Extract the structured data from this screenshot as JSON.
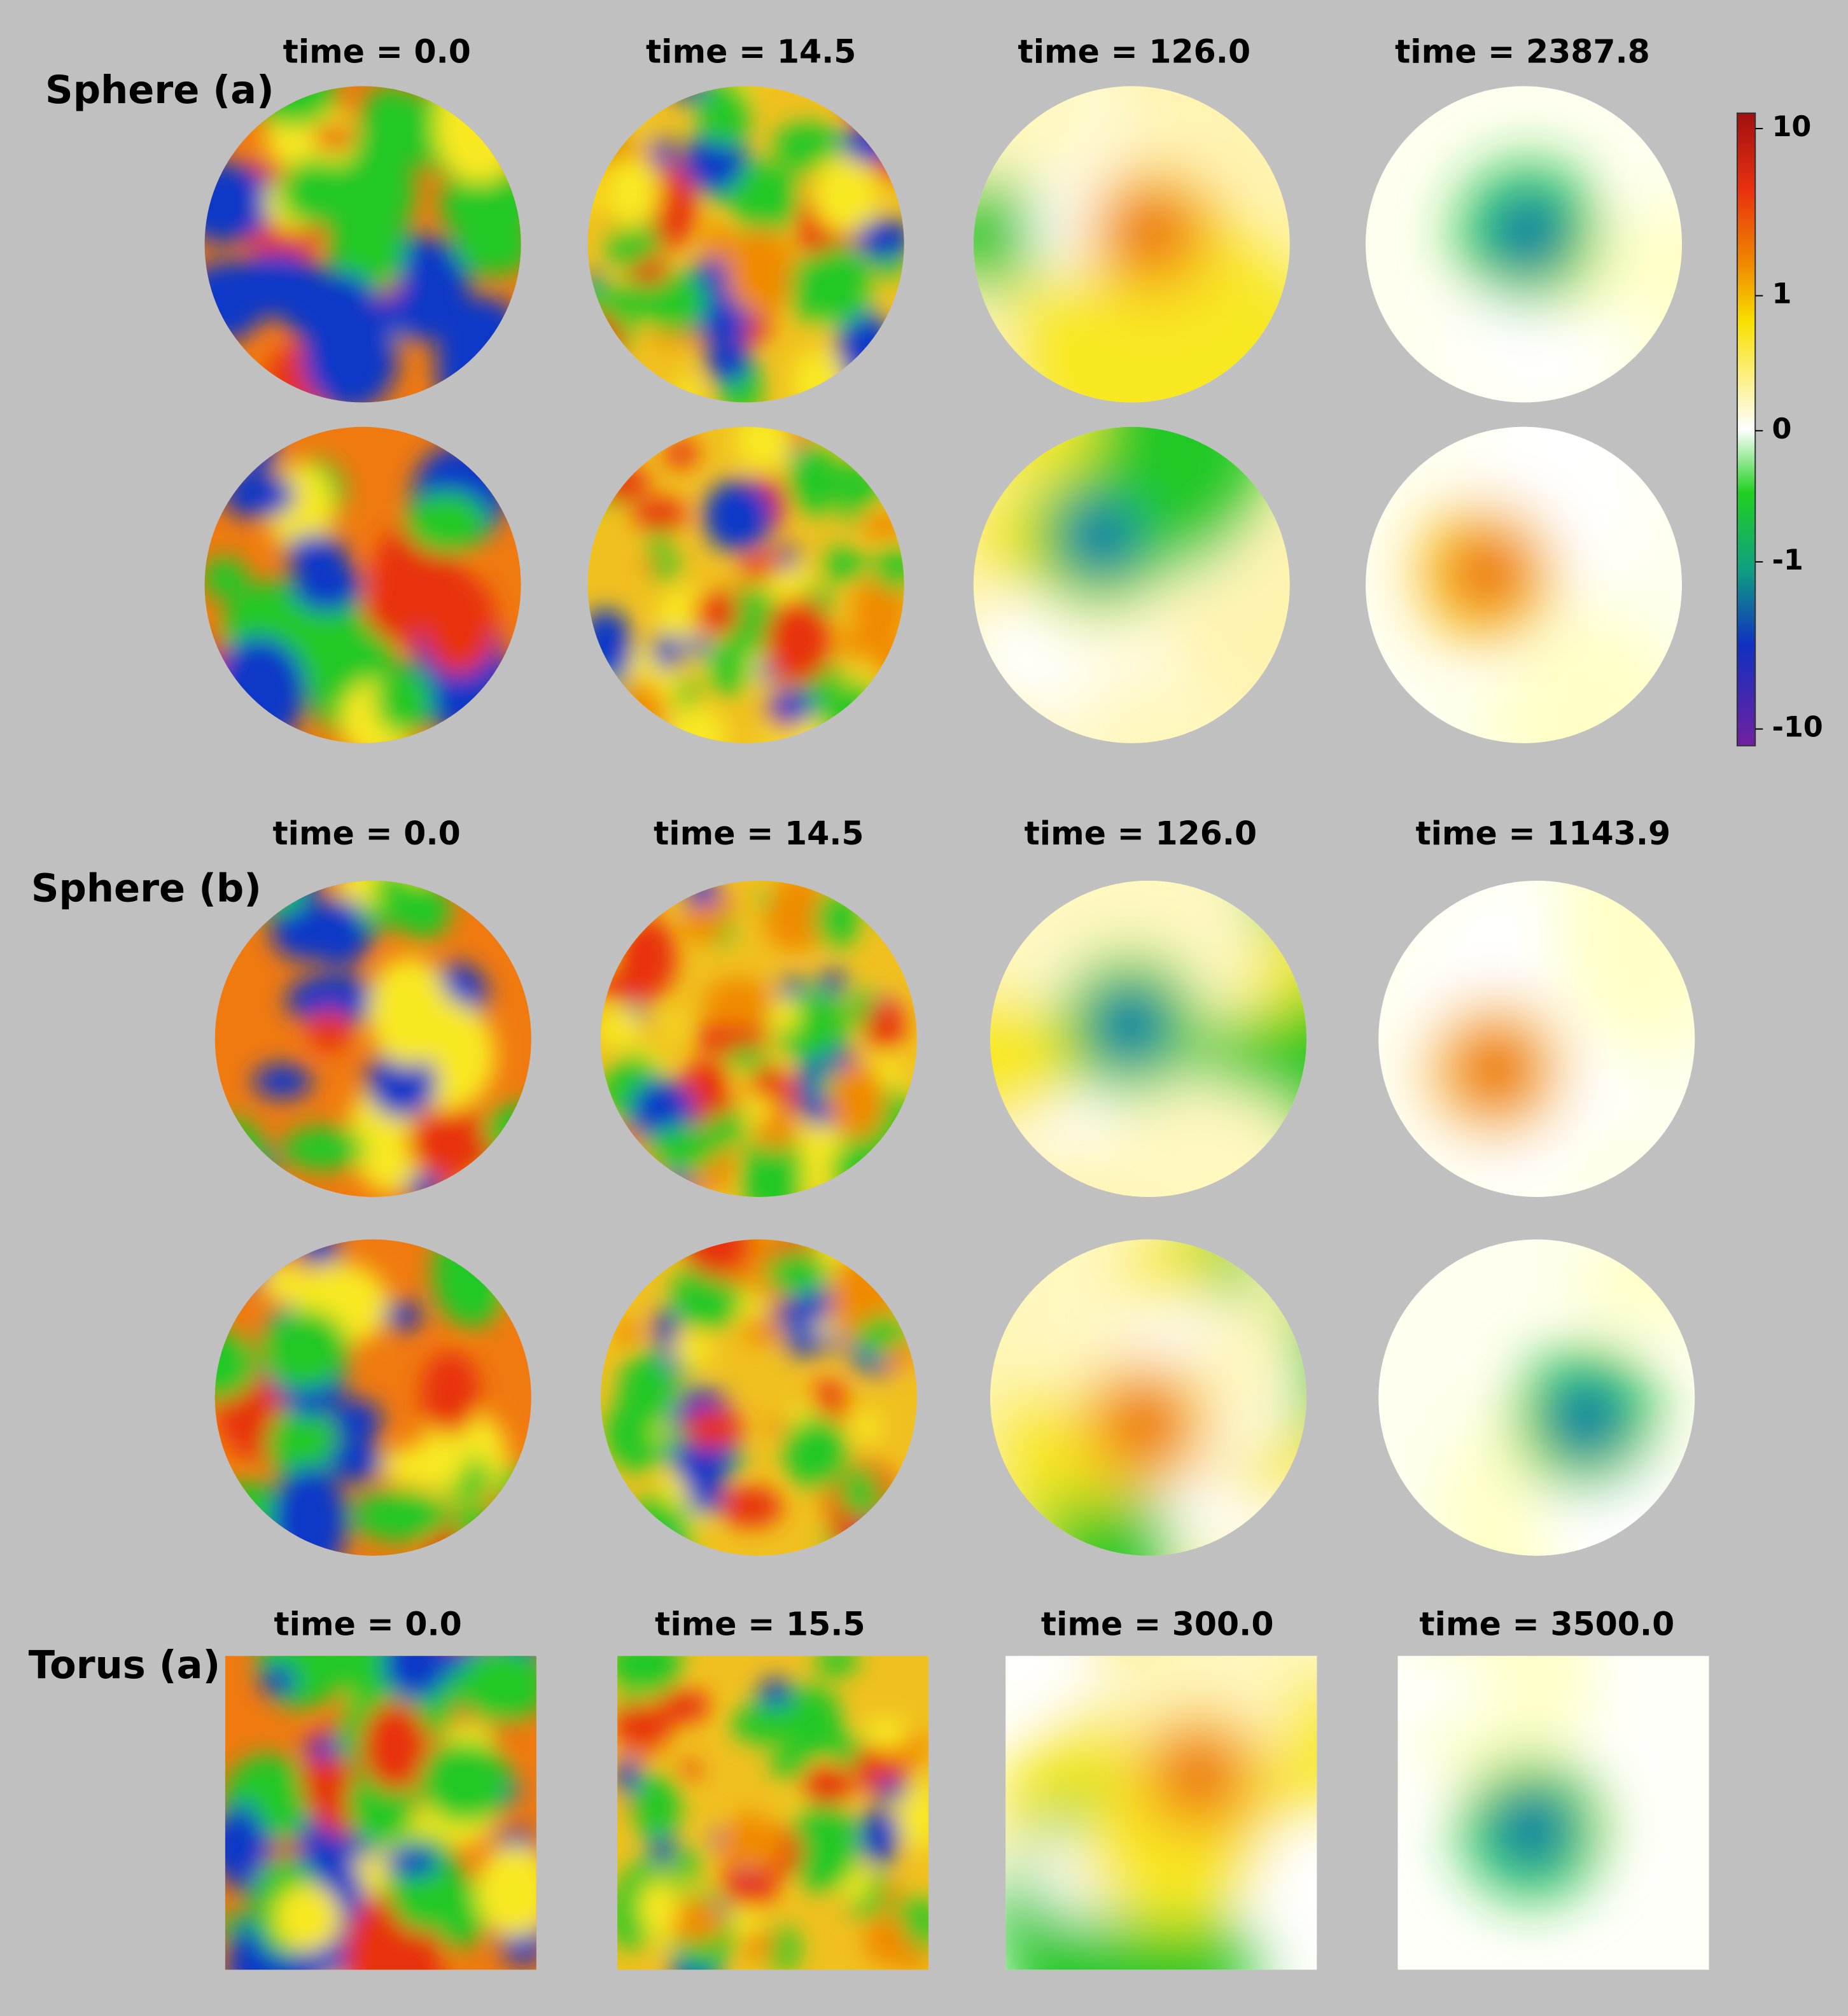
{
  "sections": [
    {
      "label": "Sphere (a)",
      "times": [
        "time = 0.0",
        "time = 14.5",
        "time = 126.0",
        "time = 2387.8"
      ]
    },
    {
      "label": "Sphere (b)",
      "times": [
        "time = 0.0",
        "time = 14.5",
        "time = 126.0",
        "time = 1143.9"
      ]
    },
    {
      "label": "Torus (a)",
      "times": [
        "time = 0.0",
        "time = 15.5",
        "time = 300.0",
        "time = 3500.0"
      ]
    }
  ],
  "colorbar": {
    "ticks": [
      "10",
      "1",
      "0",
      "-1",
      "-10"
    ]
  }
}
